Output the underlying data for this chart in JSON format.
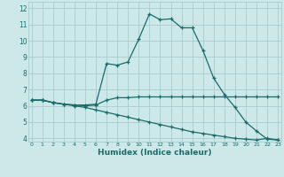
{
  "xlabel": "Humidex (Indice chaleur)",
  "background_color": "#cce8e8",
  "grid_color": "#aacccc",
  "line_color": "#1a6b6b",
  "x_ticks": [
    0,
    1,
    2,
    3,
    4,
    5,
    6,
    7,
    8,
    9,
    10,
    11,
    12,
    13,
    14,
    15,
    16,
    17,
    18,
    19,
    20,
    21,
    22,
    23
  ],
  "y_ticks": [
    4,
    5,
    6,
    7,
    8,
    9,
    10,
    11,
    12
  ],
  "ylim": [
    3.8,
    12.4
  ],
  "xlim": [
    -0.3,
    23.3
  ],
  "line1_x": [
    0,
    1,
    2,
    3,
    4,
    5,
    6,
    7,
    8,
    9,
    10,
    11,
    12,
    13,
    14,
    15,
    16,
    17,
    18,
    19,
    20,
    21,
    22,
    23
  ],
  "line1_y": [
    6.35,
    6.35,
    6.2,
    6.1,
    6.05,
    6.05,
    6.1,
    8.6,
    8.5,
    8.7,
    10.1,
    11.65,
    11.3,
    11.35,
    10.8,
    10.8,
    9.4,
    7.7,
    6.7,
    5.9,
    5.0,
    4.45,
    3.95,
    3.9
  ],
  "line2_x": [
    0,
    1,
    2,
    3,
    4,
    5,
    6,
    7,
    8,
    9,
    10,
    11,
    12,
    13,
    14,
    15,
    16,
    17,
    18,
    19,
    20,
    21,
    22,
    23
  ],
  "line2_y": [
    6.35,
    6.35,
    6.2,
    6.1,
    6.05,
    6.0,
    6.05,
    6.35,
    6.5,
    6.5,
    6.55,
    6.55,
    6.55,
    6.55,
    6.55,
    6.55,
    6.55,
    6.55,
    6.55,
    6.55,
    6.55,
    6.55,
    6.55,
    6.55
  ],
  "line3_x": [
    0,
    1,
    2,
    3,
    4,
    5,
    6,
    7,
    8,
    9,
    10,
    11,
    12,
    13,
    14,
    15,
    16,
    17,
    18,
    19,
    20,
    21,
    22,
    23
  ],
  "line3_y": [
    6.35,
    6.35,
    6.2,
    6.1,
    6.0,
    5.9,
    5.75,
    5.6,
    5.45,
    5.3,
    5.15,
    5.0,
    4.85,
    4.7,
    4.55,
    4.4,
    4.3,
    4.2,
    4.1,
    4.0,
    3.95,
    3.9,
    4.0,
    3.9
  ]
}
